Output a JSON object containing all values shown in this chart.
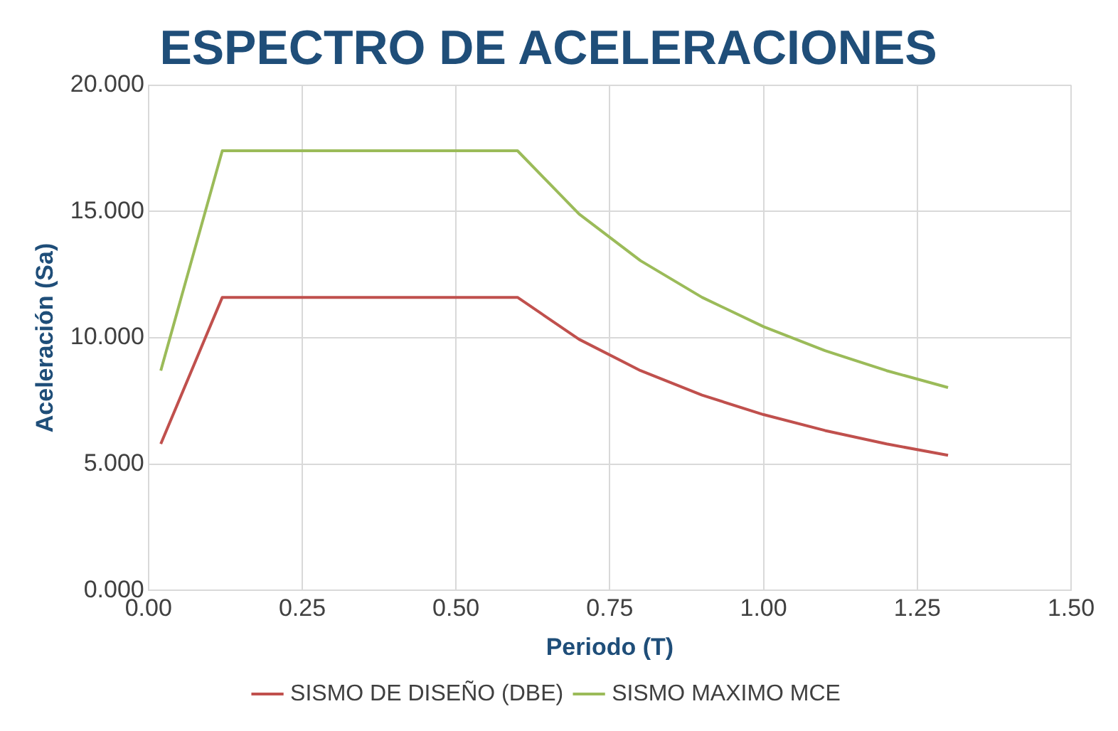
{
  "chart_data": {
    "type": "line",
    "title": "ESPECTRO DE ACELERACIONES",
    "xlabel": "Periodo (T)",
    "ylabel": "Aceleración (Sa)",
    "x": [
      0.02,
      0.12,
      0.2,
      0.3,
      0.4,
      0.5,
      0.6,
      0.7,
      0.8,
      0.9,
      1.0,
      1.1,
      1.2,
      1.3
    ],
    "series": [
      {
        "name": "SISMO DE DISEÑO (DBE)",
        "color": "#c0504d",
        "values": [
          5.8,
          11.6,
          11.6,
          11.6,
          11.6,
          11.6,
          11.6,
          9.94,
          8.7,
          7.73,
          6.96,
          6.33,
          5.8,
          5.35
        ]
      },
      {
        "name": "SISMO MAXIMO MCE",
        "color": "#9bbb59",
        "values": [
          8.7,
          17.4,
          17.4,
          17.4,
          17.4,
          17.4,
          17.4,
          14.9,
          13.05,
          11.6,
          10.44,
          9.49,
          8.7,
          8.03
        ]
      }
    ],
    "xlim": [
      0,
      1.5
    ],
    "xticks": [
      {
        "value": 0,
        "label": "0.00"
      },
      {
        "value": 0.25,
        "label": "0.25"
      },
      {
        "value": 0.5,
        "label": "0.50"
      },
      {
        "value": 0.75,
        "label": "0.75"
      },
      {
        "value": 1,
        "label": "1.00"
      },
      {
        "value": 1.25,
        "label": "1.25"
      },
      {
        "value": 1.5,
        "label": "1.50"
      }
    ],
    "ylim": [
      0,
      20
    ],
    "yticks": [
      {
        "value": 0,
        "label": "0.000"
      },
      {
        "value": 5,
        "label": "5.000"
      },
      {
        "value": 10,
        "label": "10.000"
      },
      {
        "value": 15,
        "label": "15.000"
      },
      {
        "value": 20,
        "label": "20.000"
      }
    ],
    "grid": true,
    "legend": "bottom",
    "marker": "none",
    "line_style": "solid"
  }
}
